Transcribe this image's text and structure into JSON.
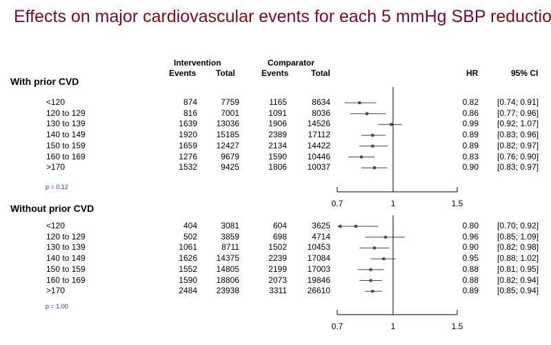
{
  "title": "Effects on major cardiovascular events for each 5 mmHg SBP reduction",
  "headers": {
    "intervention": "Intervention",
    "comparator": "Comparator",
    "events": "Events",
    "total": "Total",
    "hr": "HR",
    "ci": "95% CI"
  },
  "colors": {
    "title": "#7f0a1b",
    "marker": "#1f4e79",
    "pvalue": "#1f3fa0"
  },
  "chart_data": {
    "type": "forest",
    "x_axis": {
      "ticks": [
        0.7,
        1,
        1.5
      ],
      "reference_line": 1,
      "xlim": [
        0.7,
        1.5
      ]
    },
    "groups": [
      {
        "label": "With prior CVD",
        "p_value": "p = 0.12",
        "rows": [
          {
            "category": "<120",
            "int_events": "874",
            "int_total": "7759",
            "comp_events": "1165",
            "comp_total": "8634",
            "hr": 0.82,
            "lo": 0.74,
            "hi": 0.91,
            "hr_text": "0.82",
            "ci_text": "[0.74; 0.91]"
          },
          {
            "category": "120 to 129",
            "int_events": "816",
            "int_total": "7001",
            "comp_events": "1091",
            "comp_total": "8036",
            "hr": 0.86,
            "lo": 0.77,
            "hi": 0.96,
            "hr_text": "0.86",
            "ci_text": "[0.77; 0.96]"
          },
          {
            "category": "130 to 139",
            "int_events": "1639",
            "int_total": "13036",
            "comp_events": "1906",
            "comp_total": "14526",
            "hr": 0.99,
            "lo": 0.92,
            "hi": 1.07,
            "hr_text": "0.99",
            "ci_text": "[0.92; 1.07]"
          },
          {
            "category": "140 to 149",
            "int_events": "1920",
            "int_total": "15185",
            "comp_events": "2389",
            "comp_total": "17112",
            "hr": 0.89,
            "lo": 0.83,
            "hi": 0.96,
            "hr_text": "0.89",
            "ci_text": "[0.83; 0.96]"
          },
          {
            "category": "150 to 159",
            "int_events": "1659",
            "int_total": "12427",
            "comp_events": "2134",
            "comp_total": "14422",
            "hr": 0.89,
            "lo": 0.82,
            "hi": 0.97,
            "hr_text": "0.89",
            "ci_text": "[0.82; 0.97]"
          },
          {
            "category": "160 to 169",
            "int_events": "1276",
            "int_total": "9679",
            "comp_events": "1590",
            "comp_total": "10446",
            "hr": 0.83,
            "lo": 0.76,
            "hi": 0.9,
            "hr_text": "0.83",
            "ci_text": "[0.76; 0.90]"
          },
          {
            "category": ">170",
            "int_events": "1532",
            "int_total": "9425",
            "comp_events": "1806",
            "comp_total": "10037",
            "hr": 0.9,
            "lo": 0.83,
            "hi": 0.97,
            "hr_text": "0.90",
            "ci_text": "[0.83; 0.97]"
          }
        ]
      },
      {
        "label": "Without  prior CVD",
        "p_value": "p = 1.00",
        "rows": [
          {
            "category": "<120",
            "int_events": "404",
            "int_total": "3081",
            "comp_events": "604",
            "comp_total": "3625",
            "hr": 0.8,
            "lo": 0.7,
            "hi": 0.92,
            "hr_text": "0.80",
            "ci_text": "[0.70; 0.92]",
            "arrow_left": true
          },
          {
            "category": "120 to 129",
            "int_events": "502",
            "int_total": "3859",
            "comp_events": "698",
            "comp_total": "4714",
            "hr": 0.96,
            "lo": 0.85,
            "hi": 1.09,
            "hr_text": "0.96",
            "ci_text": "[0.85; 1.09]"
          },
          {
            "category": "130 to 139",
            "int_events": "1061",
            "int_total": "8711",
            "comp_events": "1502",
            "comp_total": "10453",
            "hr": 0.9,
            "lo": 0.82,
            "hi": 0.98,
            "hr_text": "0.90",
            "ci_text": "[0.82; 0.98]"
          },
          {
            "category": "140 to 149",
            "int_events": "1626",
            "int_total": "14375",
            "comp_events": "2239",
            "comp_total": "17084",
            "hr": 0.95,
            "lo": 0.88,
            "hi": 1.02,
            "hr_text": "0.95",
            "ci_text": "[0.88; 1.02]"
          },
          {
            "category": "150 to 159",
            "int_events": "1552",
            "int_total": "14805",
            "comp_events": "2199",
            "comp_total": "17003",
            "hr": 0.88,
            "lo": 0.81,
            "hi": 0.95,
            "hr_text": "0.88",
            "ci_text": "[0.81; 0.95]"
          },
          {
            "category": "160 to 169",
            "int_events": "1590",
            "int_total": "18806",
            "comp_events": "2073",
            "comp_total": "19846",
            "hr": 0.88,
            "lo": 0.82,
            "hi": 0.94,
            "hr_text": "0.88",
            "ci_text": "[0.82; 0.94]"
          },
          {
            "category": ">170",
            "int_events": "2484",
            "int_total": "23938",
            "comp_events": "3311",
            "comp_total": "26610",
            "hr": 0.89,
            "lo": 0.85,
            "hi": 0.94,
            "hr_text": "0.89",
            "ci_text": "[0.85; 0.94]"
          }
        ]
      }
    ]
  }
}
